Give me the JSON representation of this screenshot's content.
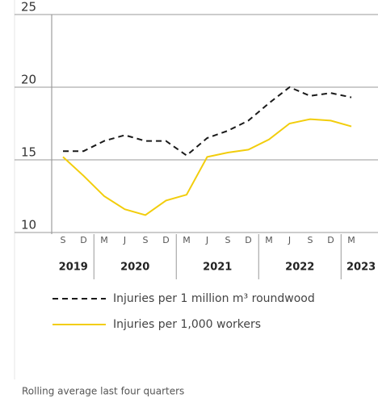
{
  "chart_data": {
    "type": "line",
    "categories": [
      "S",
      "D",
      "M",
      "J",
      "S",
      "D",
      "M",
      "J",
      "S",
      "D",
      "M",
      "J",
      "S",
      "D",
      "M"
    ],
    "years": [
      "2019",
      "2020",
      "2021",
      "2022",
      "2023"
    ],
    "series": [
      {
        "name": "Injuries per 1 million m³ roundwood",
        "color": "#1a1a1a",
        "dash": true,
        "values": [
          15.6,
          15.6,
          16.3,
          16.7,
          16.3,
          16.3,
          15.3,
          16.5,
          17.0,
          17.7,
          18.9,
          20.0,
          19.4,
          19.6,
          19.3
        ]
      },
      {
        "name": "Injuries per 1,000 workers",
        "color": "#f2cd0c",
        "dash": false,
        "values": [
          15.2,
          13.9,
          12.5,
          11.6,
          11.2,
          12.2,
          12.6,
          15.2,
          15.5,
          15.7,
          16.4,
          17.5,
          17.8,
          17.7,
          17.3
        ]
      }
    ],
    "ylim": [
      10,
      25
    ],
    "yticks": [
      10,
      15,
      20,
      25
    ],
    "grid": true,
    "footnote": "Rolling average last four quarters"
  }
}
